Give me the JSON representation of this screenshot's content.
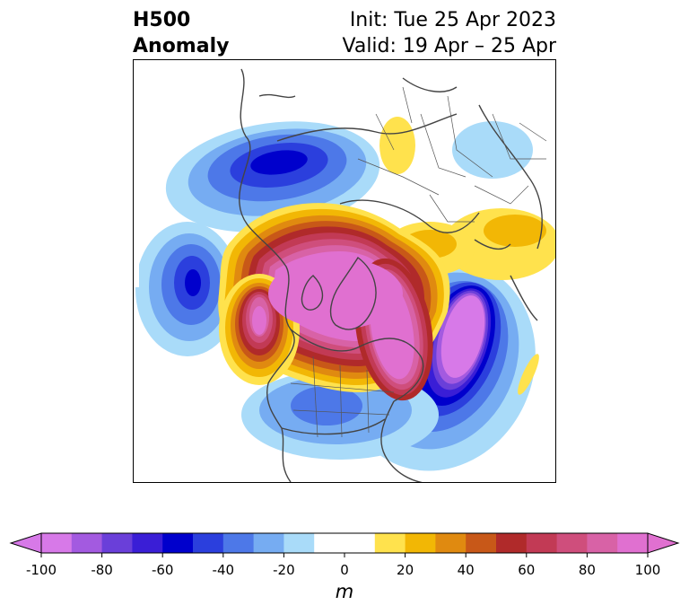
{
  "title": {
    "left_line1": "H500",
    "left_line2": "Anomaly",
    "right_line1": "Init: Tue 25 Apr 2023",
    "right_line2": "Valid: 19 Apr – 25 Apr"
  },
  "colorbar": {
    "unit": "m",
    "ticks": [
      "-100",
      "-80",
      "-60",
      "-40",
      "-20",
      "0",
      "20",
      "40",
      "60",
      "80",
      "100"
    ],
    "tick_values": [
      -100,
      -80,
      -60,
      -40,
      -20,
      0,
      20,
      40,
      60,
      80,
      100
    ],
    "extend": "both",
    "bins": [
      {
        "min": -100,
        "max": -90,
        "color": "#d779e8"
      },
      {
        "min": -90,
        "max": -80,
        "color": "#a35ae0"
      },
      {
        "min": -80,
        "max": -70,
        "color": "#6a3fd9"
      },
      {
        "min": -70,
        "max": -60,
        "color": "#3a1ed6"
      },
      {
        "min": -60,
        "max": -50,
        "color": "#0000cc"
      },
      {
        "min": -50,
        "max": -40,
        "color": "#2b3fdd"
      },
      {
        "min": -40,
        "max": -30,
        "color": "#4d78e8"
      },
      {
        "min": -30,
        "max": -20,
        "color": "#76acf2"
      },
      {
        "min": -20,
        "max": -10,
        "color": "#a9dbf9"
      },
      {
        "min": -10,
        "max": 10,
        "color": "#ffffff"
      },
      {
        "min": 10,
        "max": 20,
        "color": "#ffe24d"
      },
      {
        "min": 20,
        "max": 30,
        "color": "#f2b705"
      },
      {
        "min": 30,
        "max": 40,
        "color": "#e08a10"
      },
      {
        "min": 40,
        "max": 50,
        "color": "#c85818"
      },
      {
        "min": 50,
        "max": 60,
        "color": "#b02a2a"
      },
      {
        "min": 60,
        "max": 70,
        "color": "#c23a55"
      },
      {
        "min": 70,
        "max": 80,
        "color": "#cf4e7c"
      },
      {
        "min": 80,
        "max": 90,
        "color": "#d862a6"
      },
      {
        "min": 90,
        "max": 100,
        "color": "#e070d0"
      }
    ],
    "under_color": "#d779e8",
    "over_color": "#e070d0"
  },
  "map": {
    "projection": "polar stereographic (north)",
    "field": "500 hPa geopotential height anomaly",
    "features": [
      {
        "name": "positive anomaly center over Arctic / Greenland / Alaska",
        "peak_m": 100
      },
      {
        "name": "negative anomaly over North Atlantic",
        "peak_m": -100
      },
      {
        "name": "negative anomaly over North Pacific / Bering",
        "peak_m": -60
      },
      {
        "name": "negative anomaly over central North Pacific",
        "peak_m": -50
      },
      {
        "name": "negative anomaly over United States",
        "peak_m": -30
      },
      {
        "name": "positive anomaly over Japan / NW Pacific",
        "peak_m": 20
      },
      {
        "name": "positive anomaly over Siberia",
        "peak_m": 20
      }
    ]
  }
}
